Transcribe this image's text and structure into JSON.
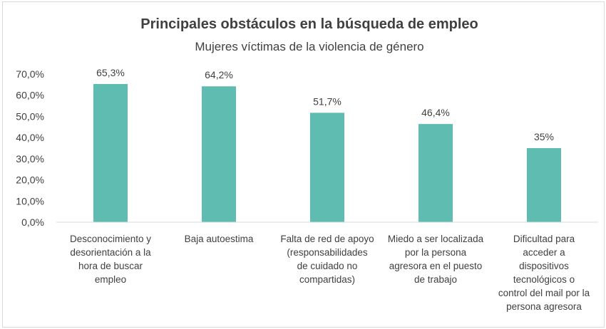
{
  "chart_data": {
    "type": "bar",
    "title": "Principales obstáculos en la búsqueda de empleo",
    "subtitle": "Mujeres víctimas de la violencia de género",
    "categories": [
      "Desconocimiento y desorientación a la hora de buscar empleo",
      "Baja autoestima",
      "Falta de red de apoyo (responsabilidades de cuidado no compartidas)",
      "Miedo a ser localizada por la persona agresora en el puesto de trabajo",
      "Dificultad para acceder a dispositivos tecnológicos o control del mail por la persona agresora"
    ],
    "category_lines": [
      [
        "Desconocimiento y",
        "desorientación a la",
        "hora de buscar",
        "empleo"
      ],
      [
        "Baja autoestima"
      ],
      [
        "Falta de red de apoyo",
        "(responsabilidades",
        "de cuidado no",
        "compartidas)"
      ],
      [
        "Miedo a ser localizada",
        "por la persona",
        "agresora en el puesto",
        "de trabajo"
      ],
      [
        "Dificultad para",
        "acceder a",
        "dispositivos",
        "tecnológicos o",
        "control del mail por la",
        "persona agresora"
      ]
    ],
    "values": [
      65.3,
      64.2,
      51.7,
      46.4,
      35
    ],
    "data_labels": [
      "65,3%",
      "64,2%",
      "51,7%",
      "46,4%",
      "35%"
    ],
    "ylim": [
      0,
      70
    ],
    "yticks": [
      0,
      10,
      20,
      30,
      40,
      50,
      60,
      70
    ],
    "ytick_labels": [
      "0,0%",
      "10,0%",
      "20,0%",
      "30,0%",
      "40,0%",
      "50,0%",
      "60,0%",
      "70,0%"
    ],
    "xlabel": "",
    "ylabel": "",
    "grid": false,
    "legend": "none",
    "bar_color": "#5fbcb1",
    "axis_color": "#d9d9d9",
    "text_color": "#404040"
  }
}
